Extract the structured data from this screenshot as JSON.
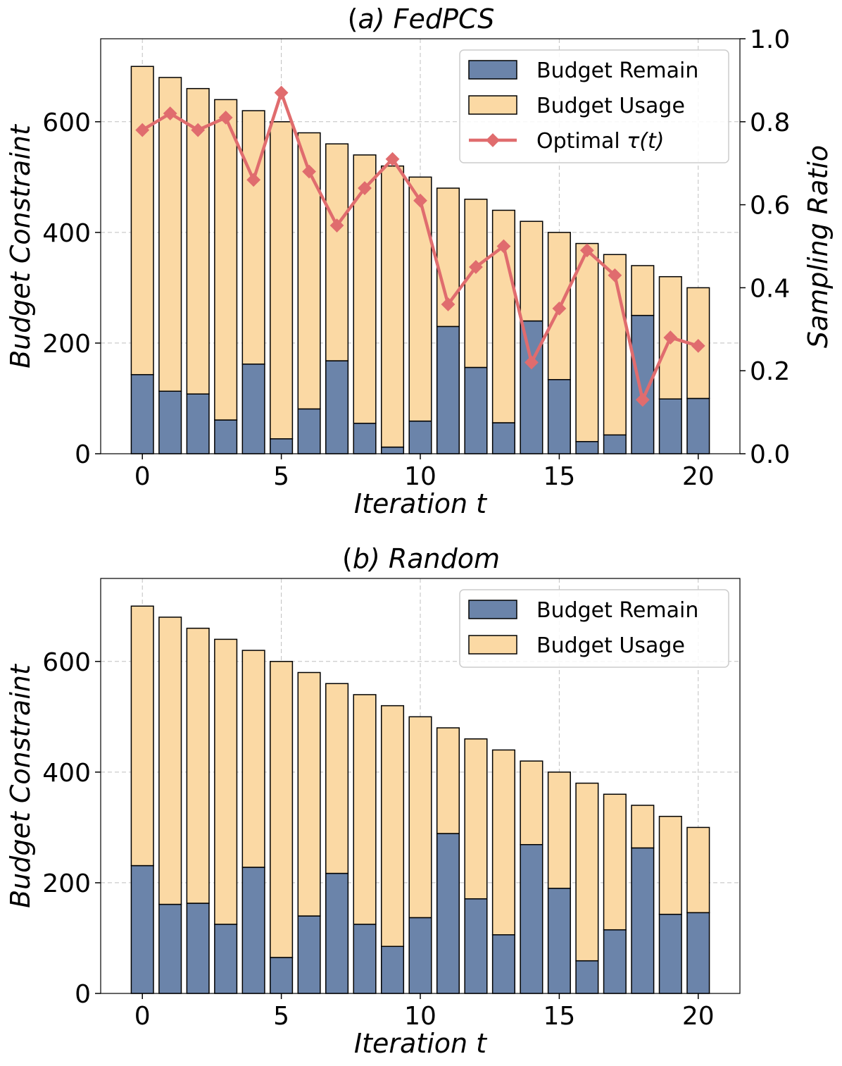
{
  "colors": {
    "remain": "#6b84aa",
    "usage": "#fbd9a4",
    "tau": "#e06c6e"
  },
  "chart_data": [
    {
      "type": "bar",
      "title_prefix": "(",
      "title_letter": "a",
      "title_rest": ") FedPCS",
      "xlabel": "Iteration t",
      "ylabel": "Budget Constraint",
      "y2label": "Sampling Ratio",
      "xlim": [
        -1.5,
        21.5
      ],
      "ylim": [
        0,
        750
      ],
      "y2lim": [
        0,
        1.0
      ],
      "xticks": [
        "0",
        "5",
        "10",
        "15",
        "20"
      ],
      "yticks": [
        "0",
        "200",
        "400",
        "600"
      ],
      "y2ticks": [
        "0.0",
        "0.2",
        "0.4",
        "0.6",
        "0.8",
        "1.0"
      ],
      "x": [
        0,
        1,
        2,
        3,
        4,
        5,
        6,
        7,
        8,
        9,
        10,
        11,
        12,
        13,
        14,
        15,
        16,
        17,
        18,
        19,
        20
      ],
      "series": [
        {
          "name": "Budget Remain",
          "values": [
            143,
            113,
            108,
            61,
            162,
            27,
            81,
            168,
            55,
            12,
            59,
            230,
            156,
            56,
            240,
            134,
            22,
            34,
            250,
            99,
            100
          ]
        },
        {
          "name": "Budget Usage",
          "values": [
            557,
            567,
            552,
            579,
            458,
            573,
            499,
            392,
            485,
            508,
            441,
            250,
            304,
            384,
            180,
            266,
            358,
            326,
            90,
            221,
            200
          ]
        }
      ],
      "totals": [
        700,
        680,
        660,
        640,
        620,
        600,
        580,
        560,
        540,
        520,
        500,
        480,
        460,
        440,
        420,
        400,
        380,
        360,
        340,
        320,
        300
      ],
      "line": {
        "name_prefix": "Optimal ",
        "name_symbol": "τ(t)",
        "axis": "right",
        "values": [
          0.78,
          0.82,
          0.78,
          0.81,
          0.66,
          0.87,
          0.68,
          0.55,
          0.64,
          0.71,
          0.61,
          0.36,
          0.45,
          0.5,
          0.22,
          0.35,
          0.49,
          0.43,
          0.13,
          0.28,
          0.26
        ]
      },
      "legend": [
        "Budget Remain",
        "Budget Usage"
      ],
      "legend_position": "top-right",
      "grid": true
    },
    {
      "type": "bar",
      "title_prefix": "(",
      "title_letter": "b",
      "title_rest": ") Random",
      "xlabel": "Iteration t",
      "ylabel": "Budget Constraint",
      "xlim": [
        -1.5,
        21.5
      ],
      "ylim": [
        0,
        750
      ],
      "xticks": [
        "0",
        "5",
        "10",
        "15",
        "20"
      ],
      "yticks": [
        "0",
        "200",
        "400",
        "600"
      ],
      "x": [
        0,
        1,
        2,
        3,
        4,
        5,
        6,
        7,
        8,
        9,
        10,
        11,
        12,
        13,
        14,
        15,
        16,
        17,
        18,
        19,
        20
      ],
      "series": [
        {
          "name": "Budget Remain",
          "values": [
            231,
            161,
            163,
            125,
            228,
            65,
            140,
            217,
            125,
            85,
            137,
            289,
            171,
            106,
            269,
            190,
            59,
            115,
            263,
            143,
            146
          ]
        },
        {
          "name": "Budget Usage",
          "values": [
            469,
            519,
            497,
            515,
            392,
            535,
            440,
            343,
            415,
            435,
            363,
            191,
            289,
            334,
            151,
            210,
            321,
            245,
            77,
            177,
            154
          ]
        }
      ],
      "totals": [
        700,
        680,
        660,
        640,
        620,
        600,
        580,
        560,
        540,
        520,
        500,
        480,
        460,
        440,
        420,
        400,
        380,
        360,
        340,
        320,
        300
      ],
      "legend": [
        "Budget Remain",
        "Budget Usage"
      ],
      "legend_position": "top-right",
      "grid": true
    }
  ]
}
